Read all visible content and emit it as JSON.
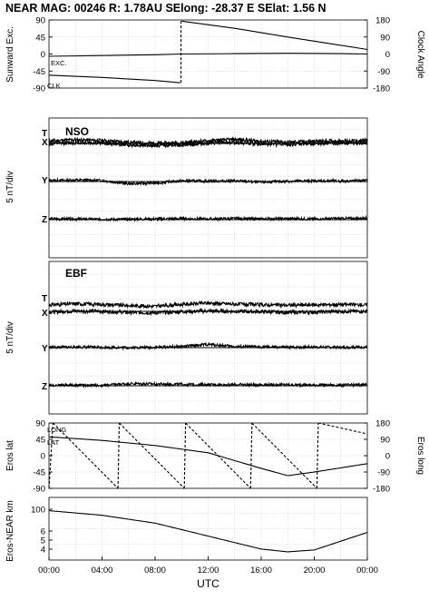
{
  "header": {
    "title": "NEAR MAG: 00246  R: 1.78AU  SElong:  -28.37 E  SElat:    1.56 N"
  },
  "sections": {
    "nso": "NSO",
    "ebf": "EBF"
  },
  "labels": {
    "exc": "EXC.",
    "clk": "CLK",
    "t": "T",
    "x": "X",
    "y": "Y",
    "z": "Z",
    "long": "LONG",
    "lat": "LAT"
  },
  "axis_titles": {
    "sunward_exc": "Sunward Exc.",
    "clock_angle": "Clock Angle",
    "div_nso": "5 nT/div",
    "div_ebf": "5 nT/div",
    "eros_lat": "Eros lat",
    "eros_long": "Eros long",
    "eros_near_km": "Eros-NEAR km",
    "utc": "UTC"
  },
  "chart_data": [
    {
      "panel": "sunward-exc-clock-angle",
      "type": "line",
      "y_left_ticks": [
        "90",
        "45",
        "0",
        "-45",
        "-90"
      ],
      "y_right_ticks": [
        "180",
        "90",
        "0",
        "-90",
        "-180"
      ],
      "ylim": [
        -90,
        90
      ],
      "series": [
        {
          "name": "EXC.",
          "x": [
            0,
            4,
            8,
            10,
            14,
            18,
            22,
            24
          ],
          "y": [
            -6,
            -4,
            -2,
            0,
            1,
            2,
            1,
            0
          ]
        },
        {
          "name": "CLK",
          "x": [
            0,
            4,
            8,
            9.9,
            10,
            14,
            18,
            22,
            24
          ],
          "y": [
            -56,
            -62,
            -70,
            -76,
            87,
            68,
            45,
            23,
            12
          ]
        }
      ]
    },
    {
      "panel": "nso",
      "type": "line",
      "components": [
        "T",
        "X",
        "Y",
        "Z"
      ],
      "x_hours": [
        0,
        2,
        4,
        6,
        8,
        10,
        12,
        14,
        16,
        18,
        20,
        22,
        24
      ],
      "series": [
        {
          "name": "T",
          "y": [
            0.2,
            0.5,
            0.3,
            -0.2,
            -0.5,
            -0.3,
            0.2,
            0.6,
            0.1,
            -0.2,
            0.1,
            0.2,
            0.3
          ]
        },
        {
          "name": "X",
          "y": [
            -0.1,
            0.2,
            0.1,
            -0.4,
            -0.6,
            -0.4,
            0,
            0.3,
            -0.2,
            -0.3,
            0,
            0.1,
            0.1
          ]
        },
        {
          "name": "Y",
          "y": [
            0.3,
            0.4,
            0.3,
            -0.6,
            -0.4,
            0.2,
            0.1,
            0.2,
            -0.2,
            0.1,
            0.2,
            0.1,
            0.3
          ]
        },
        {
          "name": "Z",
          "y": [
            0.2,
            0.2,
            0.1,
            0.1,
            0.2,
            0.3,
            0.2,
            0.3,
            0.2,
            0.3,
            0.2,
            0.3,
            0.4
          ]
        }
      ]
    },
    {
      "panel": "ebf",
      "type": "line",
      "components": [
        "T",
        "X",
        "Y",
        "Z"
      ],
      "x_hours": [
        0,
        2,
        4,
        6,
        8,
        10,
        12,
        14,
        16,
        18,
        20,
        22,
        24
      ],
      "series": [
        {
          "name": "T",
          "y": [
            0.3,
            0.6,
            0.4,
            0.1,
            -0.1,
            0.4,
            0.8,
            0.5,
            0.3,
            0.2,
            0.3,
            0.4,
            0.3
          ]
        },
        {
          "name": "X",
          "y": [
            -0.2,
            0.1,
            0,
            -0.3,
            -0.4,
            -0.1,
            0.1,
            0,
            -0.1,
            -0.3,
            -0.2,
            0,
            0
          ]
        },
        {
          "name": "Y",
          "y": [
            0.1,
            0.2,
            0.1,
            0,
            0.1,
            0.3,
            0.9,
            0.3,
            0.2,
            0.1,
            0.2,
            0.1,
            0.2
          ]
        },
        {
          "name": "Z",
          "y": [
            0.2,
            0.2,
            0.1,
            0.6,
            0.5,
            0.4,
            0.3,
            0.3,
            0.3,
            0.3,
            0.2,
            0.2,
            0.3
          ]
        }
      ]
    },
    {
      "panel": "eros-lat-long",
      "type": "line",
      "y_left_ticks": [
        "90",
        "45",
        "0",
        "-45",
        "-90"
      ],
      "y_right_ticks": [
        "180",
        "90",
        "0",
        "-90",
        "-180"
      ],
      "ylim": [
        -90,
        90
      ],
      "series": [
        {
          "name": "LAT",
          "x": [
            0,
            4,
            8,
            12,
            16,
            18,
            20,
            24
          ],
          "y": [
            52,
            42,
            28,
            8,
            -35,
            -55,
            -45,
            -22
          ]
        },
        {
          "name": "LONG",
          "x": [
            0,
            0.3,
            5.2,
            5.3,
            10.2,
            10.3,
            15.2,
            15.3,
            20.2,
            20.3,
            24
          ],
          "y": [
            -180,
            180,
            -180,
            180,
            -180,
            180,
            -180,
            180,
            -180,
            180,
            120
          ]
        }
      ]
    },
    {
      "panel": "eros-near-km",
      "type": "line",
      "y_ticks": [
        "100",
        "6",
        "5",
        "4"
      ],
      "series": [
        {
          "name": "",
          "x": [
            0,
            4,
            8,
            12,
            16,
            18,
            20,
            24
          ],
          "y": [
            95,
            85,
            68,
            40,
            12,
            6,
            10,
            48
          ]
        }
      ]
    }
  ],
  "x_axis": {
    "tick_labels": [
      "00:00",
      "04:00",
      "08:00",
      "12:00",
      "16:00",
      "20:00",
      "00:00"
    ],
    "label": "UTC"
  }
}
